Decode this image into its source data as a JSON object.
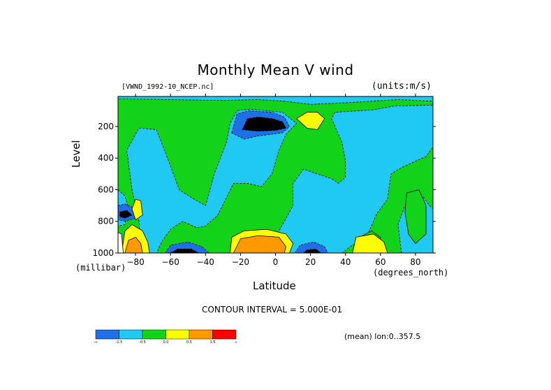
{
  "chart_data": {
    "type": "heatmap",
    "title": "Monthly Mean V wind",
    "dataset_label": "[VWND_1992-10_NCEP.nc]",
    "units_label": "(units:m/s)",
    "xlabel": "Latitude",
    "x_unit": "(degrees_north)",
    "ylabel": "Level",
    "y_unit": "(millibar)",
    "xlim": [
      -90,
      90
    ],
    "ylim": [
      1000,
      10
    ],
    "x_ticks": [
      -80,
      -60,
      -40,
      -20,
      0,
      20,
      40,
      60,
      80
    ],
    "y_ticks": [
      200,
      400,
      600,
      800,
      1000
    ],
    "contour_interval_label": "CONTOUR INTERVAL = 5.000E-01",
    "mean_label": "(mean) lon:0..357.5",
    "colorbar": {
      "colors": [
        "#1f6fe6",
        "#1fc9f2",
        "#12d21a",
        "#ffff00",
        "#ff9900",
        "#ff0000"
      ],
      "tick_labels": [
        "-∞",
        "-1.5",
        "-0.5",
        "0.0",
        "0.5",
        "1.5",
        "∞"
      ]
    },
    "regions": [
      {
        "level": 2,
        "center_lat": -9,
        "center_p": 170,
        "note": "negative maximum near 200 mb, 20S-0"
      },
      {
        "level": 3,
        "center_lat": -8,
        "center_p": 960,
        "note": "positive maximum near surface, 25S-5N"
      },
      {
        "level": 3,
        "center_lat": -83,
        "center_p": 980,
        "note": "positive maximum near surface, 85S-75S"
      },
      {
        "level": 2,
        "center_lat": -57,
        "center_p": 990,
        "note": "negative near surface, 65S-45S"
      },
      {
        "level": 2,
        "center_lat": 18,
        "center_p": 990,
        "note": "negative near surface, 12N-25N"
      },
      {
        "level": 1,
        "center_lat": 65,
        "center_p": 980,
        "note": "positive near surface, 45N-65N"
      },
      {
        "level": 1,
        "center_lat": 20,
        "center_p": 150,
        "note": "positive upper level near 20N"
      }
    ]
  }
}
